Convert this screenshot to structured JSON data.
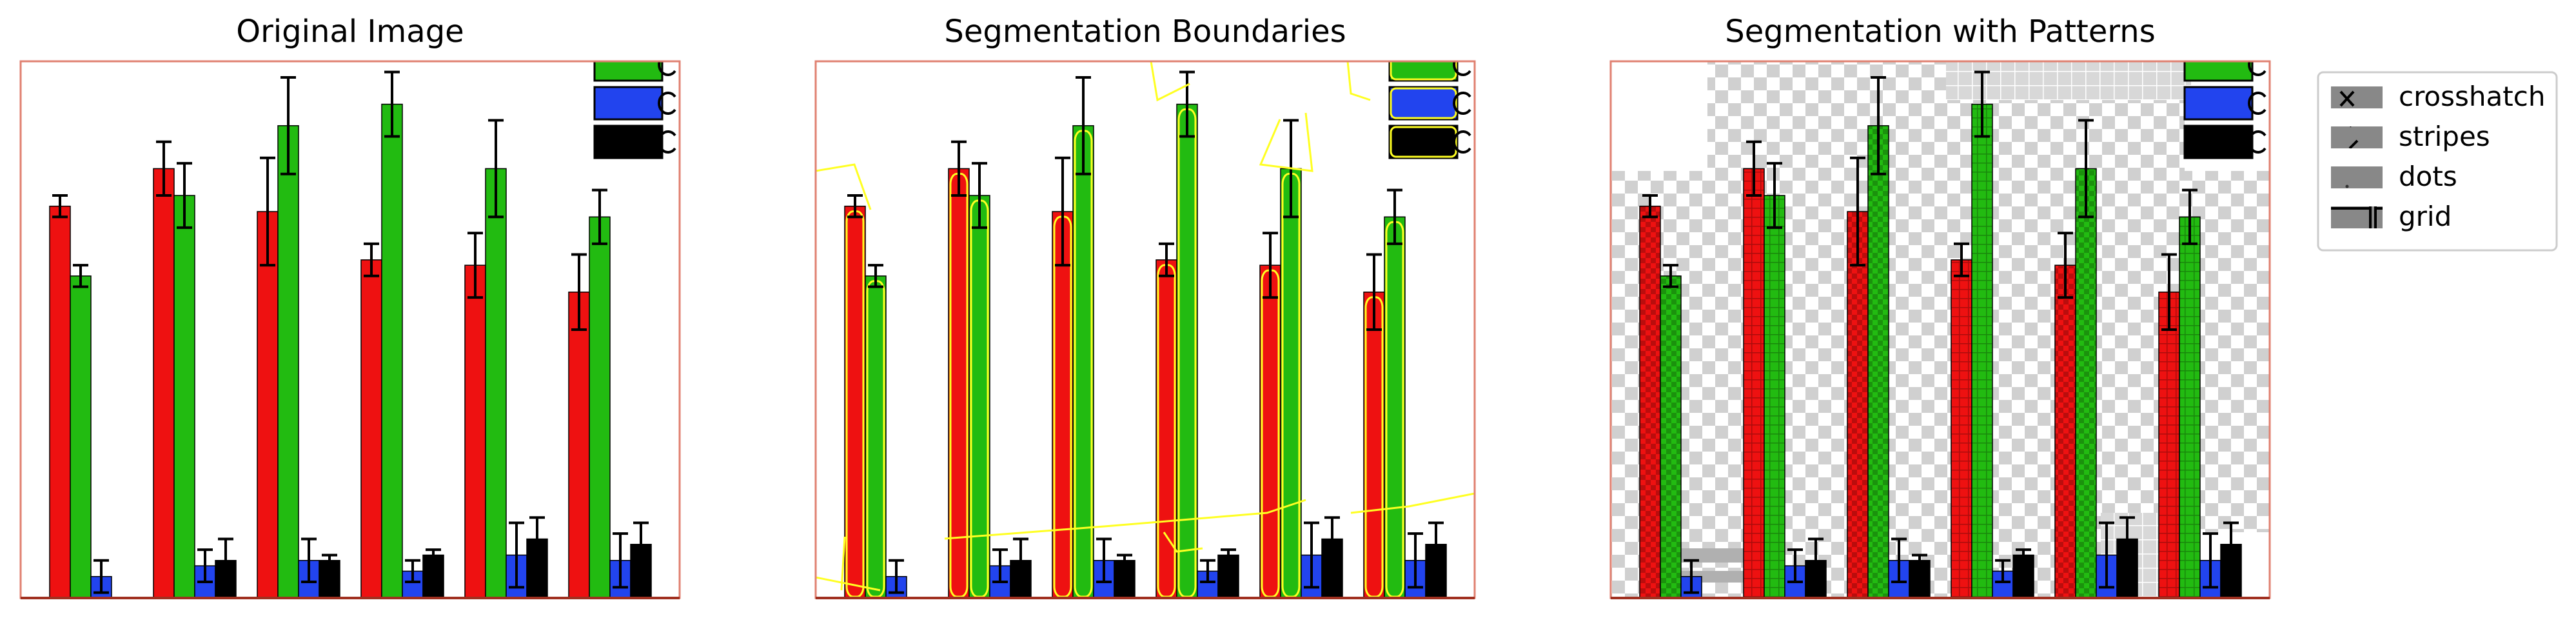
{
  "figure": {
    "panels": [
      {
        "title": "Original Image",
        "style": "plain"
      },
      {
        "title": "Segmentation Boundaries",
        "style": "boundaries"
      },
      {
        "title": "Segmentation with Patterns",
        "style": "patterns"
      }
    ],
    "legend": {
      "placement": "right-of-third-panel",
      "entries": [
        {
          "label": "crosshatch",
          "pattern": "crosshatch"
        },
        {
          "label": "stripes",
          "pattern": "stripes"
        },
        {
          "label": "dots",
          "pattern": "dots"
        },
        {
          "label": "grid",
          "pattern": "grid"
        }
      ]
    },
    "colors": {
      "red": "#ee1111",
      "green": "#22bb11",
      "blue": "#2244ee",
      "black": "#000000",
      "frame": "#e08070",
      "boundary": "#ffff22",
      "legend_swatch": "#888888"
    }
  },
  "chart_data": {
    "type": "bar",
    "grouped": true,
    "categories": [
      "",
      "",
      "",
      "",
      "",
      ""
    ],
    "ylim": [
      0,
      100
    ],
    "grid": false,
    "series": [
      {
        "color": "red",
        "values": [
          73,
          80,
          72,
          63,
          62,
          57
        ],
        "errors": [
          2,
          5,
          10,
          3,
          6,
          7
        ]
      },
      {
        "color": "green",
        "values": [
          60,
          75,
          88,
          92,
          80,
          71
        ],
        "errors": [
          2,
          6,
          9,
          6,
          9,
          5
        ]
      },
      {
        "color": "blue",
        "values": [
          4,
          6,
          7,
          5,
          8,
          7
        ],
        "errors": [
          3,
          3,
          4,
          2,
          6,
          5
        ]
      },
      {
        "color": "black",
        "values": [
          0,
          7,
          7,
          8,
          11,
          10
        ],
        "errors": [
          0,
          4,
          1,
          1,
          4,
          4
        ]
      }
    ],
    "legend_colors": [
      "green",
      "blue",
      "black"
    ],
    "legend_placement": "top-right (clipped)"
  }
}
